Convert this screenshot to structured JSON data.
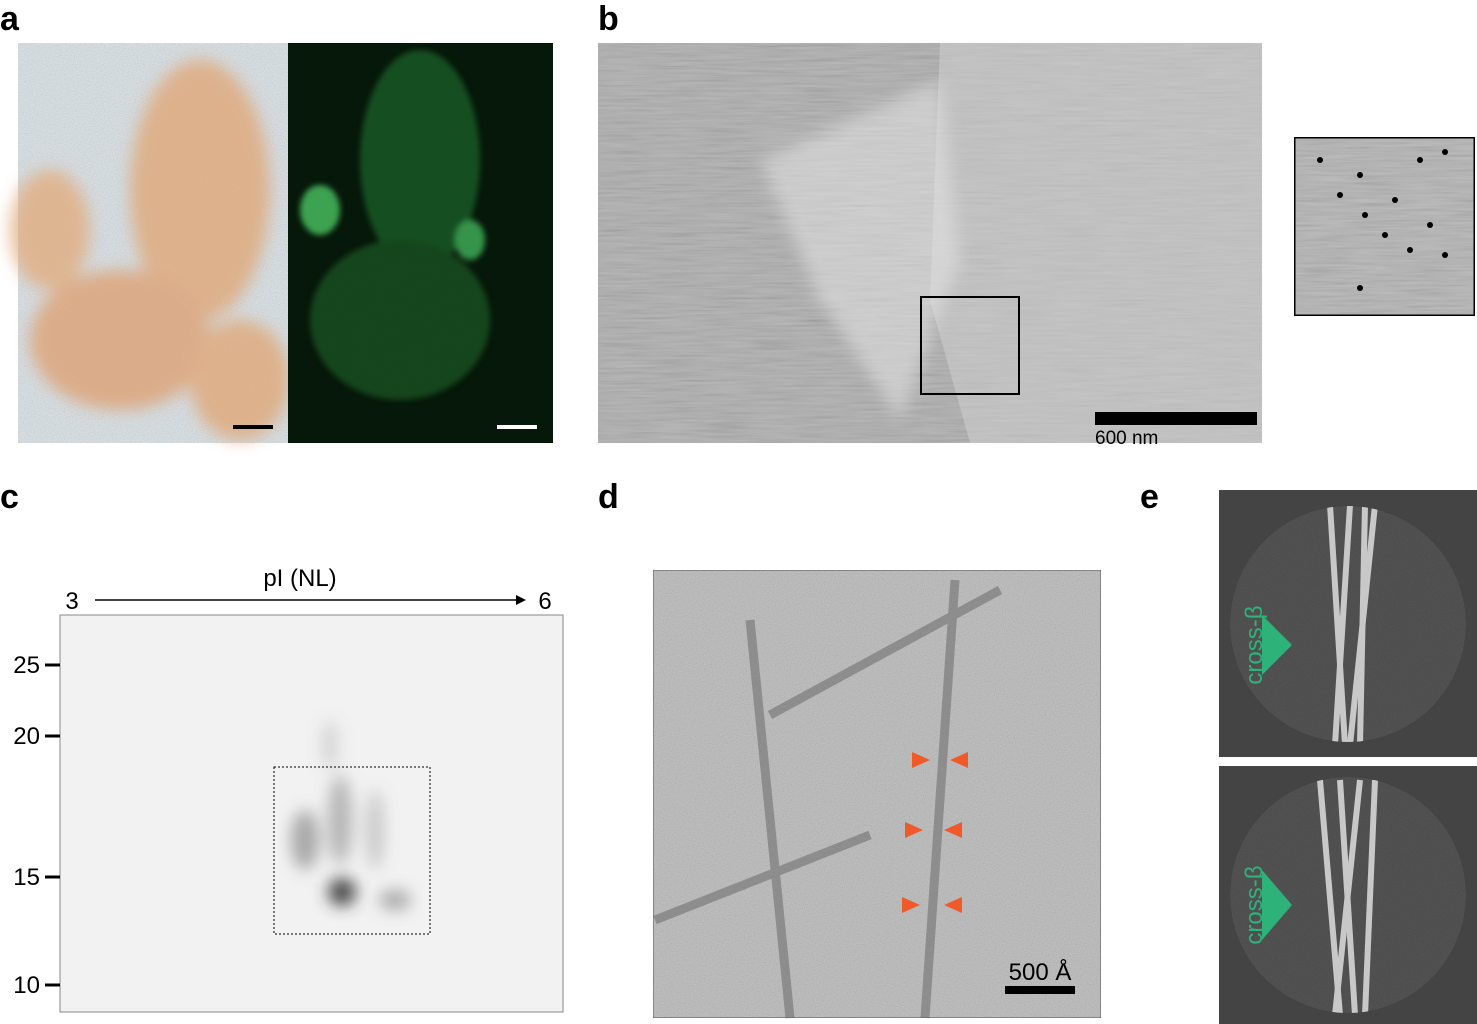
{
  "panels": [
    {
      "label": "a"
    },
    {
      "label": "b",
      "scale_bar": "600 nm"
    },
    {
      "label": "c",
      "x_axis": {
        "title": "pI (NL)",
        "start": 3,
        "end": 6
      },
      "y_ticks": [
        25,
        20,
        15,
        10
      ]
    },
    {
      "label": "d",
      "scale_bar": "500 Å"
    },
    {
      "label": "e",
      "annotations": [
        "cross-β",
        "cross-β"
      ]
    }
  ]
}
